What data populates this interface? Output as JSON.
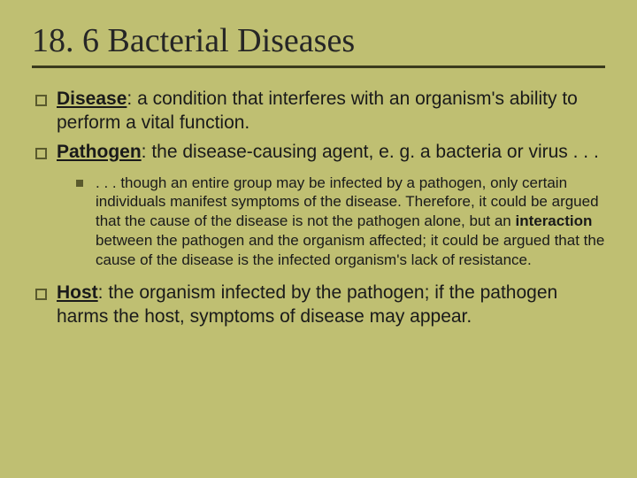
{
  "colors": {
    "background": "#bfbf72",
    "title_text": "#262626",
    "body_text": "#1a1a1a",
    "rule": "#3a3a1d",
    "bullet_border": "#5a5a2d",
    "bullet_fill": "#5a5a2d"
  },
  "typography": {
    "title_font": "Times New Roman",
    "body_font": "Verdana",
    "title_size_pt": 29,
    "body_size_pt": 16,
    "sub_size_pt": 13
  },
  "slide": {
    "title": "18. 6 Bacterial Diseases",
    "bullets": [
      {
        "term": "Disease",
        "rest": ": a condition that interferes with an organism's ability to perform a vital function."
      },
      {
        "term": "Pathogen",
        "rest": ": the disease-causing agent, e. g. a bacteria or virus . . .",
        "sub": [
          {
            "lead": "    . . . though an entire group may be infected by a pathogen, only certain individuals manifest symptoms of the disease.  Therefore, it could be argued that the cause of the disease is not the pathogen alone, but an ",
            "bold1": "interaction",
            "mid": " between the pathogen and the organism affected; it could be argued that the cause of the disease is the infected organism's lack of resistance."
          }
        ]
      },
      {
        "term": "Host",
        "rest": ": the organism infected by the pathogen; if the pathogen harms the host, symptoms of disease may appear."
      }
    ]
  }
}
